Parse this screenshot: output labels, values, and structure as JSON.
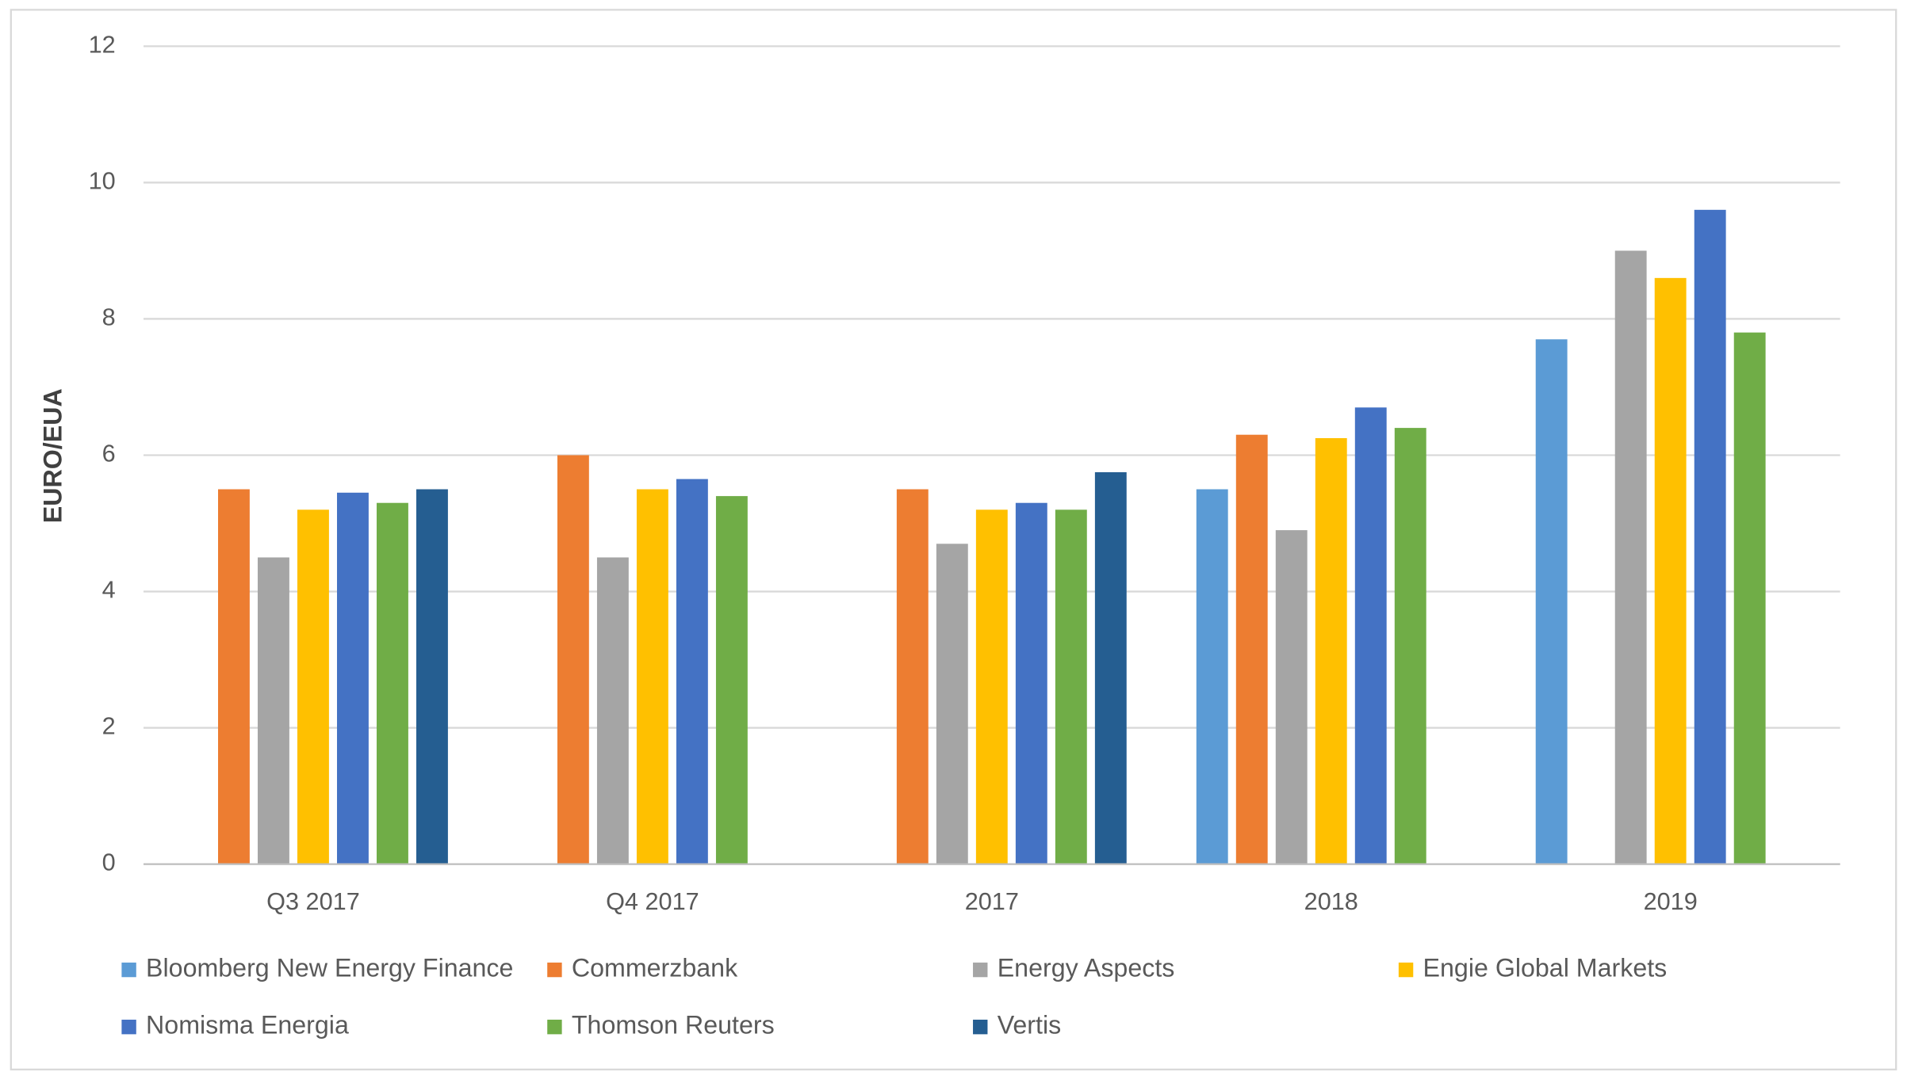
{
  "chart_data": {
    "type": "bar",
    "y_label": "EURO/EUA",
    "categories": [
      "Q3 2017",
      "Q4 2017",
      "2017",
      "2018",
      "2019"
    ],
    "series": [
      {
        "name": "Bloomberg New Energy Finance",
        "color": "#5b9bd5",
        "values": [
          null,
          null,
          null,
          5.5,
          7.7
        ]
      },
      {
        "name": "Commerzbank",
        "color": "#ed7d31",
        "values": [
          5.5,
          6.0,
          5.5,
          6.3,
          null
        ]
      },
      {
        "name": "Energy Aspects",
        "color": "#a5a5a5",
        "values": [
          4.5,
          4.5,
          4.7,
          4.9,
          9.0
        ]
      },
      {
        "name": "Engie Global Markets",
        "color": "#ffc000",
        "values": [
          5.2,
          5.5,
          5.2,
          6.25,
          8.6
        ]
      },
      {
        "name": "Nomisma Energia",
        "color": "#4472c4",
        "values": [
          5.45,
          5.65,
          5.3,
          6.7,
          9.6
        ]
      },
      {
        "name": "Thomson Reuters",
        "color": "#70ad47",
        "values": [
          5.3,
          5.4,
          5.2,
          6.4,
          7.8
        ]
      },
      {
        "name": "Vertis",
        "color": "#255e91",
        "values": [
          5.5,
          null,
          5.75,
          null,
          null
        ]
      }
    ],
    "ylim": [
      0,
      12
    ],
    "yticks": [
      0,
      2,
      4,
      6,
      8,
      10,
      12
    ],
    "grid": true,
    "legend": "bottom"
  }
}
